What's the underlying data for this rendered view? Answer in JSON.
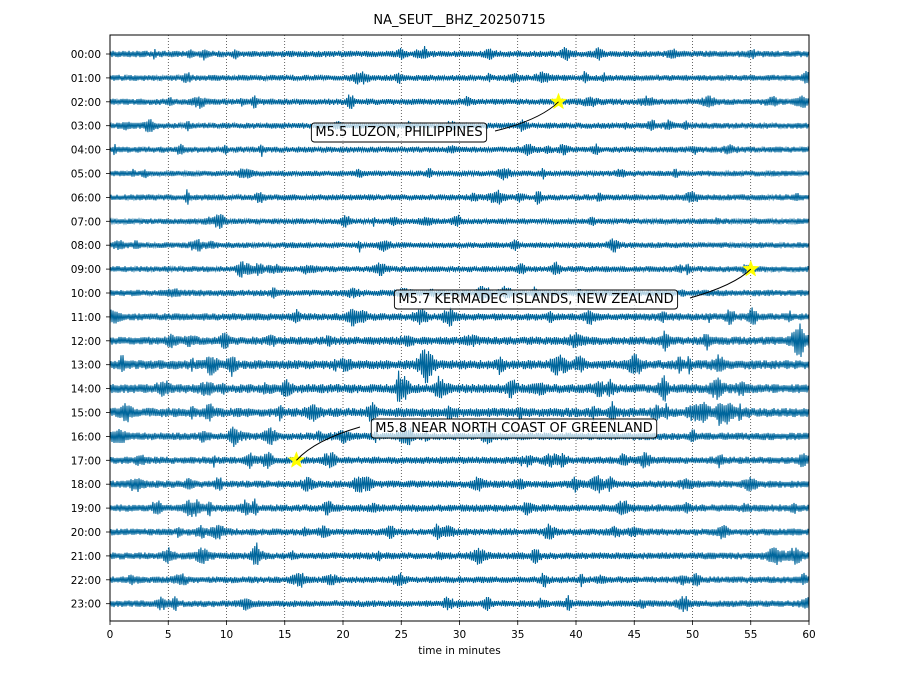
{
  "chart_data": {
    "type": "line",
    "title": "NA_SEUT__BHZ_20250715",
    "xlabel": "time in minutes",
    "ylabel": "",
    "xlim": [
      0,
      60
    ],
    "x_ticks": [
      "0",
      "5",
      "10",
      "15",
      "20",
      "25",
      "30",
      "35",
      "40",
      "45",
      "50",
      "55",
      "60"
    ],
    "y_ticks": [
      "00:00",
      "01:00",
      "02:00",
      "03:00",
      "04:00",
      "05:00",
      "06:00",
      "07:00",
      "08:00",
      "09:00",
      "10:00",
      "11:00",
      "12:00",
      "13:00",
      "14:00",
      "15:00",
      "16:00",
      "17:00",
      "18:00",
      "19:00",
      "20:00",
      "21:00",
      "22:00",
      "23:00"
    ],
    "trace_color": "#00669c",
    "vertical_grid": "dotted",
    "noise_level": [
      0.55,
      0.5,
      0.55,
      0.5,
      0.5,
      0.45,
      0.5,
      0.45,
      0.45,
      0.5,
      0.55,
      0.7,
      0.85,
      1.0,
      1.0,
      1.0,
      0.75,
      0.7,
      0.7,
      0.7,
      0.65,
      0.65,
      0.6,
      0.6
    ],
    "events": [
      {
        "label": "M5.5 LUZON, PHILIPPINES",
        "hour": 2,
        "minute": 38.5
      },
      {
        "label": "M5.7 KERMADEC ISLANDS, NEW ZEALAND",
        "hour": 9,
        "minute": 55.0
      },
      {
        "label": "M5.8 NEAR NORTH COAST OF GREENLAND",
        "hour": 17,
        "minute": 16.0
      }
    ],
    "event_marker_color": "#ffff00"
  }
}
